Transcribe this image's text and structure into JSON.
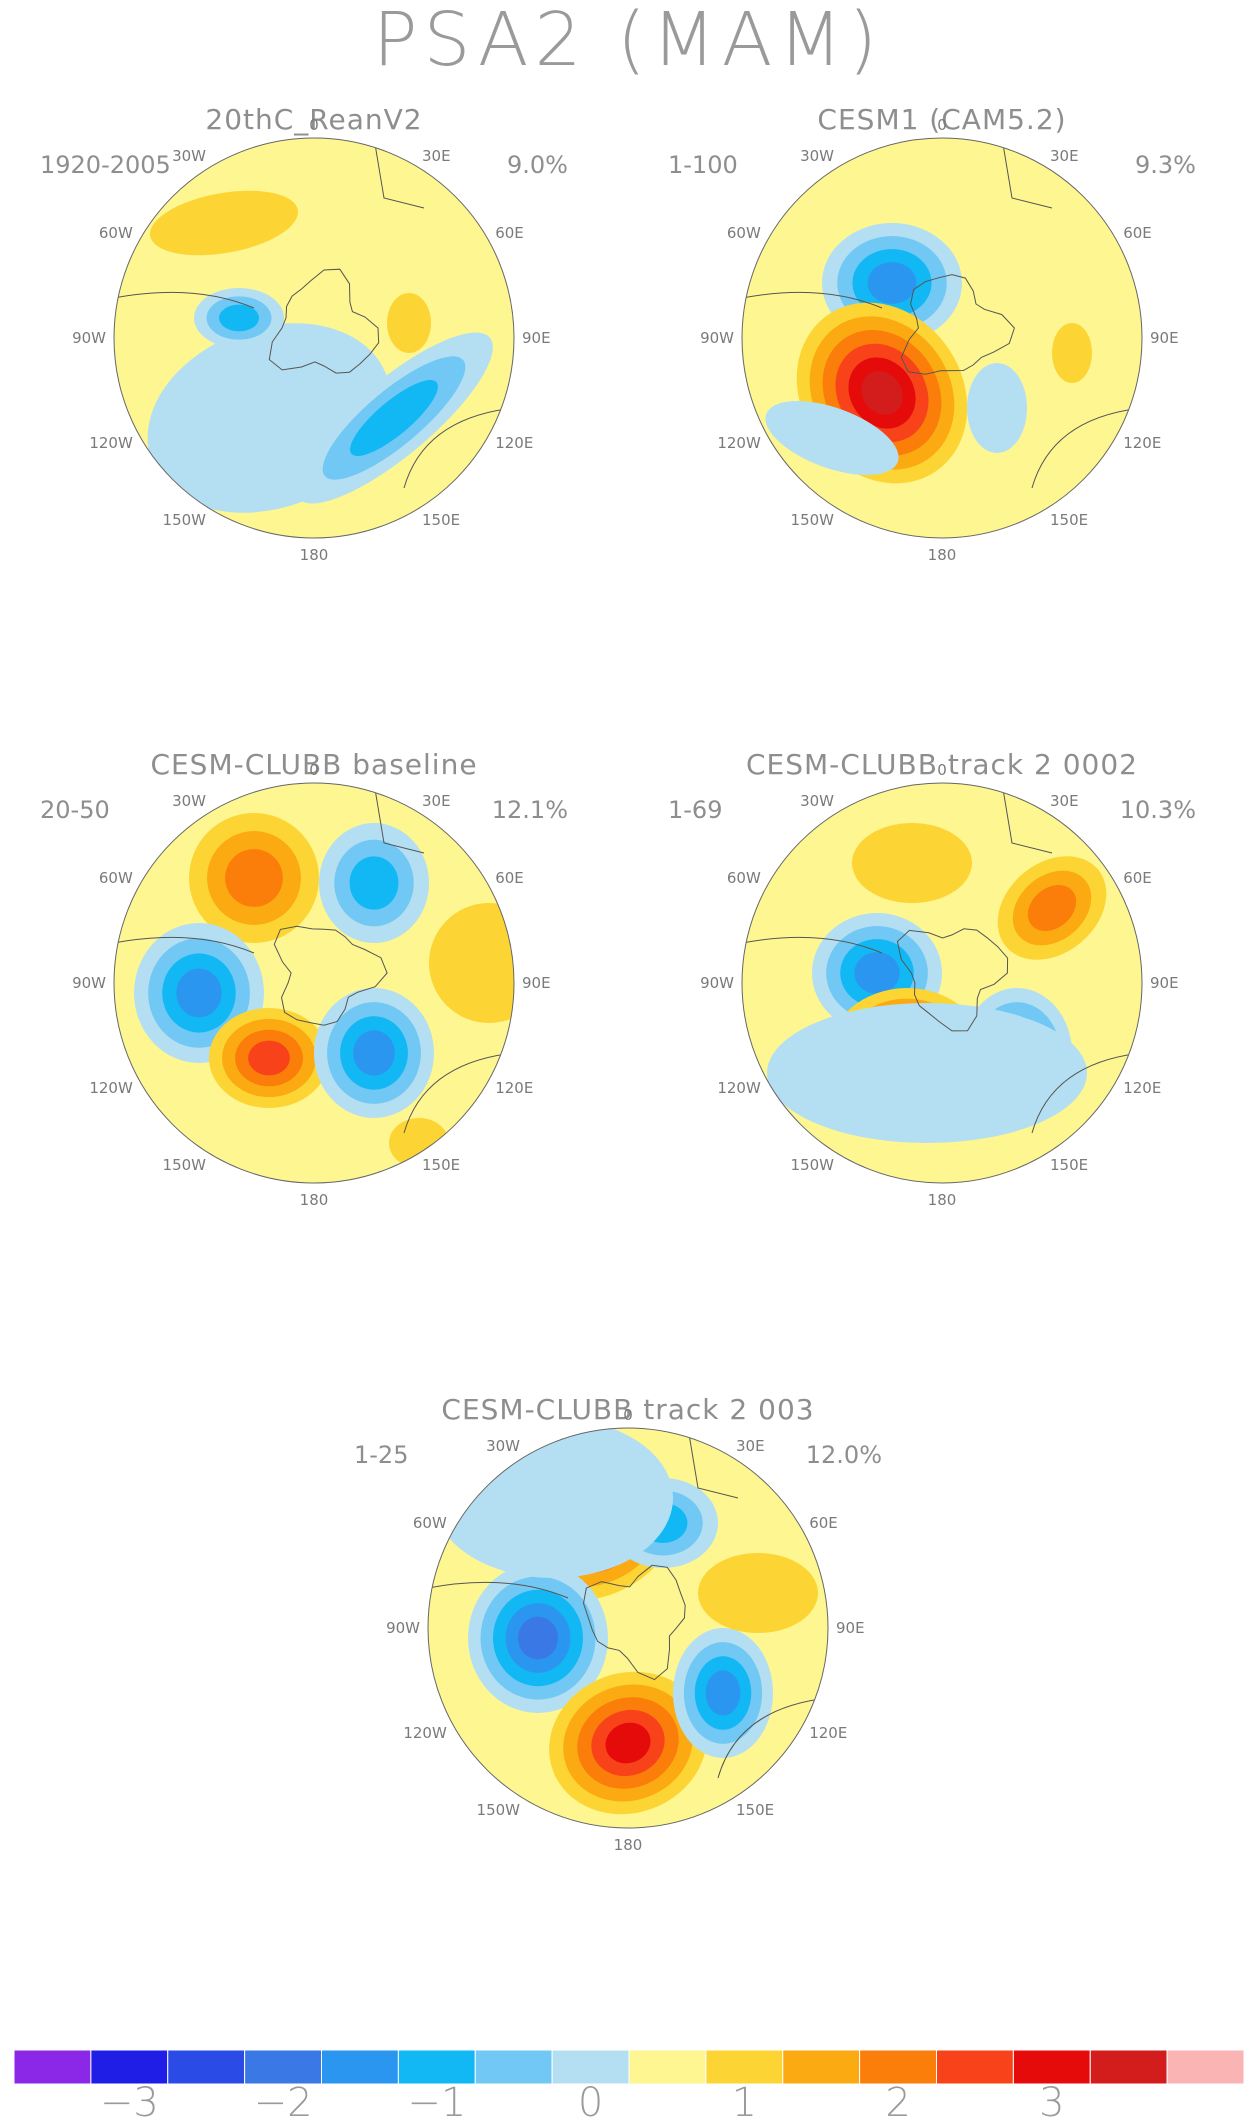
{
  "title": "PSA2 (MAM)",
  "panels": [
    {
      "title": "20thC_ReanV2",
      "years": "1920-2005",
      "pct": "9.0%"
    },
    {
      "title": "CESM1 (CAM5.2)",
      "years": "1-100",
      "pct": "9.3%"
    },
    {
      "title": "CESM-CLUBB baseline",
      "years": "20-50",
      "pct": "12.1%"
    },
    {
      "title": "CESM-CLUBB track 2 0002",
      "years": "1-69",
      "pct": "10.3%"
    },
    {
      "title": "CESM-CLUBB track 2 003",
      "years": "1-25",
      "pct": "12.0%"
    }
  ],
  "longitude_labels": {
    "top": "0",
    "bottom": "180",
    "l30": "30W",
    "r30": "30E",
    "l60": "60W",
    "r60": "60E",
    "l90": "90W",
    "r90": "90E",
    "l120": "120W",
    "r120": "120E",
    "l150": "150W",
    "r150": "150E"
  },
  "colorbar": {
    "colors": [
      "#8b28e8",
      "#1e1ee6",
      "#2a4be6",
      "#3a78e6",
      "#2a96f0",
      "#12b8f4",
      "#72c8f4",
      "#b4dff2",
      "#fdf691",
      "#fcd534",
      "#fcaa12",
      "#fb7d0a",
      "#f8431a",
      "#e60b0b",
      "#d31c1c",
      "#fab4b4"
    ],
    "tick_labels": [
      "−3",
      "−2",
      "−1",
      "0",
      "1",
      "2",
      "3"
    ]
  }
}
